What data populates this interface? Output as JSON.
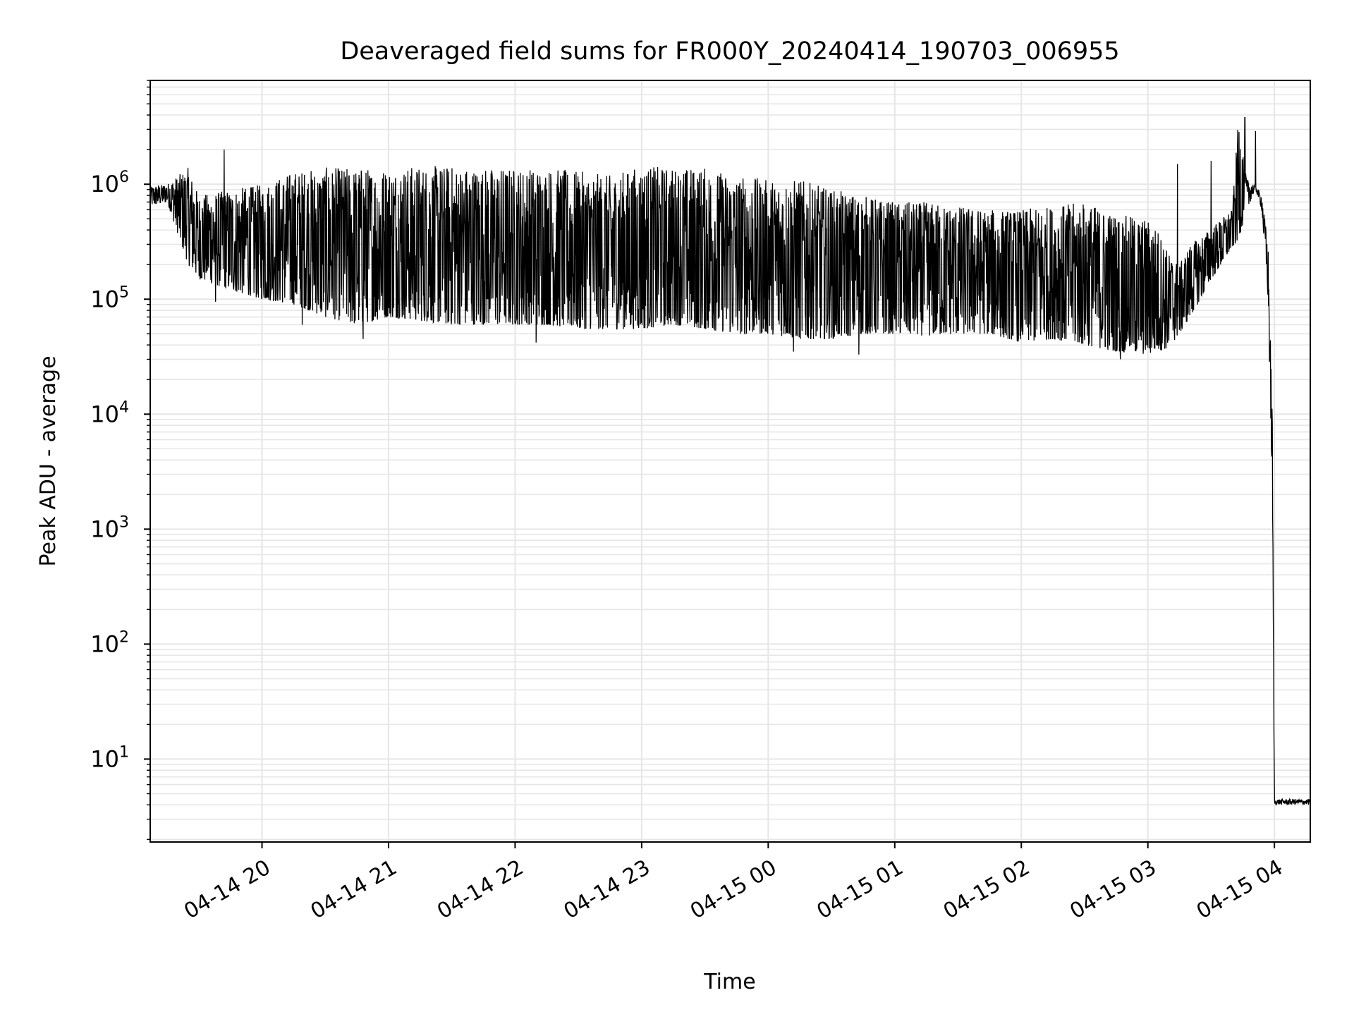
{
  "chart_data": {
    "type": "line",
    "title": "Deaveraged field sums for FR000Y_20240414_190703_006955",
    "xlabel": "Time",
    "ylabel": "Peak ADU - average",
    "yscale": "log",
    "xlim": [
      "2024-04-14 19:07",
      "2024-04-15 04:17"
    ],
    "ylim": [
      1.9,
      8000000
    ],
    "grid": true,
    "line_color": "#000000",
    "x_ticks": [
      {
        "t": "2024-04-14 20:00",
        "label": "04-14 20"
      },
      {
        "t": "2024-04-14 21:00",
        "label": "04-14 21"
      },
      {
        "t": "2024-04-14 22:00",
        "label": "04-14 22"
      },
      {
        "t": "2024-04-14 23:00",
        "label": "04-14 23"
      },
      {
        "t": "2024-04-15 00:00",
        "label": "04-15 00"
      },
      {
        "t": "2024-04-15 01:00",
        "label": "04-15 01"
      },
      {
        "t": "2024-04-15 02:00",
        "label": "04-15 02"
      },
      {
        "t": "2024-04-15 03:00",
        "label": "04-15 03"
      },
      {
        "t": "2024-04-15 04:00",
        "label": "04-15 04"
      }
    ],
    "y_ticks": [
      {
        "exp": 1,
        "base": "10",
        "sup": "1"
      },
      {
        "exp": 2,
        "base": "10",
        "sup": "2"
      },
      {
        "exp": 3,
        "base": "10",
        "sup": "3"
      },
      {
        "exp": 4,
        "base": "10",
        "sup": "4"
      },
      {
        "exp": 5,
        "base": "10",
        "sup": "5"
      },
      {
        "exp": 6,
        "base": "10",
        "sup": "6"
      }
    ],
    "series": [
      {
        "envelope": {
          "x": [
            "2024-04-14 19:07",
            "2024-04-14 19:15",
            "2024-04-14 19:25",
            "2024-04-14 19:30",
            "2024-04-14 19:45",
            "2024-04-14 20:00",
            "2024-04-14 20:15",
            "2024-04-14 20:30",
            "2024-04-14 20:45",
            "2024-04-14 21:00",
            "2024-04-14 21:15",
            "2024-04-14 21:30",
            "2024-04-14 21:45",
            "2024-04-14 22:00",
            "2024-04-14 22:15",
            "2024-04-14 22:30",
            "2024-04-14 22:45",
            "2024-04-14 23:00",
            "2024-04-14 23:15",
            "2024-04-14 23:30",
            "2024-04-14 23:45",
            "2024-04-15 00:00",
            "2024-04-15 00:15",
            "2024-04-15 00:30",
            "2024-04-15 00:45",
            "2024-04-15 01:00",
            "2024-04-15 01:15",
            "2024-04-15 01:30",
            "2024-04-15 01:45",
            "2024-04-15 02:00",
            "2024-04-15 02:15",
            "2024-04-15 02:30",
            "2024-04-15 02:45",
            "2024-04-15 03:00",
            "2024-04-15 03:05",
            "2024-04-15 03:10",
            "2024-04-15 03:15",
            "2024-04-15 03:20",
            "2024-04-15 03:25",
            "2024-04-15 03:30",
            "2024-04-15 03:35",
            "2024-04-15 03:40",
            "2024-04-15 03:43",
            "2024-04-15 03:47",
            "2024-04-15 03:51",
            "2024-04-15 03:54",
            "2024-04-15 03:57",
            "2024-04-15 03:59",
            "2024-04-15 04:00",
            "2024-04-15 04:17"
          ],
          "low": [
            650000,
            700000,
            200000,
            150000,
            120000,
            100000,
            90000,
            70000,
            60000,
            70000,
            65000,
            60000,
            60000,
            60000,
            60000,
            55000,
            55000,
            55000,
            60000,
            55000,
            50000,
            50000,
            45000,
            45000,
            50000,
            50000,
            48000,
            50000,
            50000,
            42000,
            45000,
            40000,
            35000,
            33000,
            35000,
            38000,
            50000,
            70000,
            100000,
            150000,
            200000,
            280000,
            330000,
            600000,
            900000,
            600000,
            100000,
            2000,
            4,
            4
          ],
          "high": [
            950000,
            1000000,
            1400000,
            800000,
            900000,
            1000000,
            1300000,
            1400000,
            1400000,
            1400000,
            1450000,
            1450000,
            1400000,
            1400000,
            1400000,
            1300000,
            1200000,
            1450000,
            1400000,
            1400000,
            1200000,
            1100000,
            1100000,
            900000,
            800000,
            700000,
            700000,
            650000,
            600000,
            600000,
            650000,
            700000,
            550000,
            500000,
            400000,
            250000,
            200000,
            300000,
            350000,
            420000,
            500000,
            600000,
            3800000,
            1100000,
            1000000,
            800000,
            300000,
            10000,
            4.5,
            4.5
          ],
          "spikes": [
            {
              "t": "2024-04-14 19:42",
              "v": 2000000
            },
            {
              "t": "2024-04-14 19:38",
              "v": 95000
            },
            {
              "t": "2024-04-14 20:19",
              "v": 60000
            },
            {
              "t": "2024-04-14 20:48",
              "v": 45000
            },
            {
              "t": "2024-04-14 22:10",
              "v": 42000
            },
            {
              "t": "2024-04-15 00:12",
              "v": 35000
            },
            {
              "t": "2024-04-15 00:43",
              "v": 33000
            },
            {
              "t": "2024-04-15 02:47",
              "v": 30000
            },
            {
              "t": "2024-04-15 03:14",
              "v": 1500000
            },
            {
              "t": "2024-04-15 03:30",
              "v": 1600000
            },
            {
              "t": "2024-04-15 03:46",
              "v": 3800000
            },
            {
              "t": "2024-04-15 03:51",
              "v": 2900000
            }
          ]
        }
      }
    ]
  }
}
